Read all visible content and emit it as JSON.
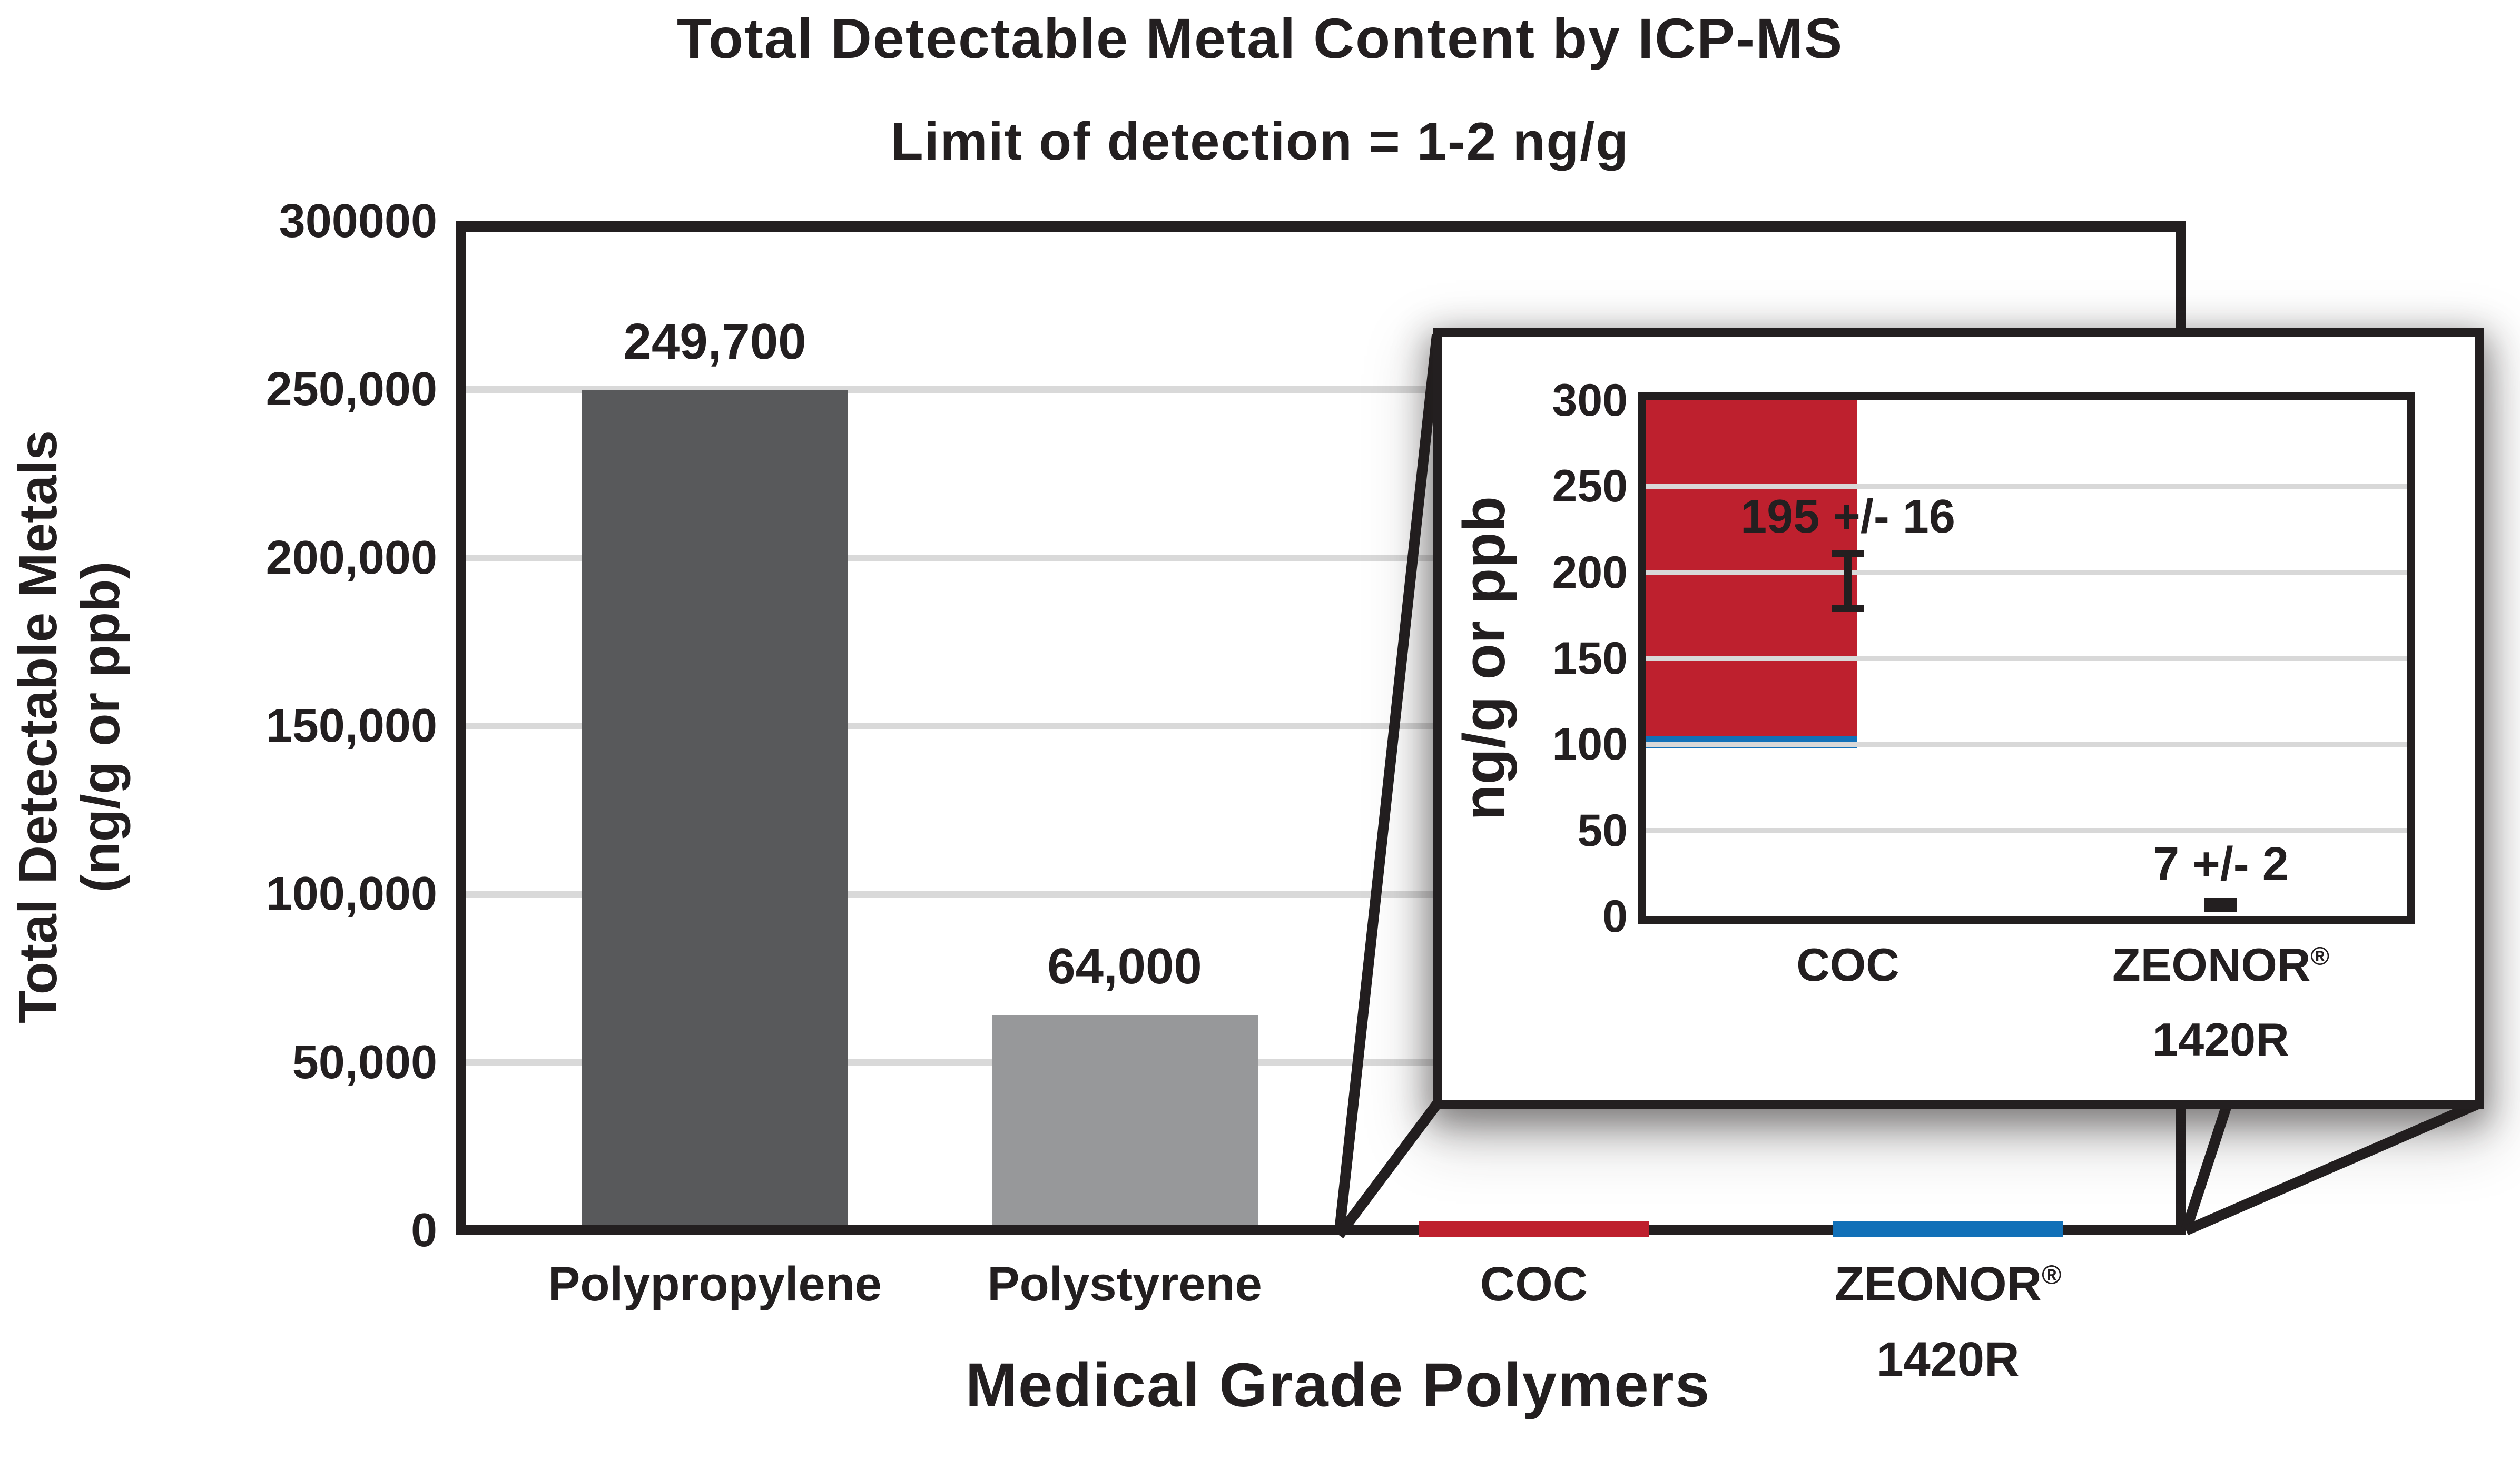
{
  "ui": {
    "title": "Total Detectable Metal Content by ICP-MS",
    "subtitle": "Limit of detection = 1-2 ng/g",
    "main": {
      "y_title_line1": "Total Detectable Metals",
      "y_title_line2": "(ng/g or ppb)",
      "x_title": "Medical Grade Polymers"
    },
    "inset": {
      "y_title": "ng/g or ppb"
    }
  },
  "colors": {
    "ink": "#231F20",
    "grid_main": "#D9D9D9",
    "grid_inset": "#D8D8D8",
    "polypropylene": "#58595B",
    "polystyrene": "#97989A",
    "coc_red": "#BE202E",
    "zeonor_blue": "#1170B8"
  },
  "chart_data": [
    {
      "type": "bar",
      "role": "main",
      "title": "Total Detectable Metal Content by ICP-MS",
      "subtitle": "Limit of detection = 1-2 ng/g",
      "categories": [
        "Polypropylene",
        "Polystyrene",
        "COC",
        "ZEONOR® 1420R"
      ],
      "x_tick_lines": [
        [
          "Polypropylene"
        ],
        [
          "Polystyrene"
        ],
        [
          "COC"
        ],
        [
          "ZEONOR®",
          "1420R"
        ]
      ],
      "values": [
        249700,
        64000,
        195,
        7
      ],
      "data_labels": [
        "249,700",
        "64,000",
        "",
        ""
      ],
      "bar_colors": [
        "#58595B",
        "#97989A",
        "#BE202E",
        "#1170B8"
      ],
      "xlabel": "Medical Grade Polymers",
      "ylabel": "Total Detectable Metals (ng/g or ppb)",
      "ylim": [
        0,
        300000
      ],
      "yticks": [
        0,
        50000,
        100000,
        150000,
        200000,
        250000,
        300000
      ],
      "ytick_labels": [
        "0",
        "50,000",
        "100,000",
        "150,000",
        "200,000",
        "250,000",
        "300000"
      ],
      "gridlines": [
        50000,
        100000,
        150000,
        200000,
        250000
      ],
      "grid": true,
      "legend": "none"
    },
    {
      "type": "bar",
      "role": "inset",
      "categories": [
        "COC",
        "ZEONOR® 1420R"
      ],
      "x_tick_lines": [
        [
          "COC"
        ],
        [
          "ZEONOR®",
          "1420R"
        ]
      ],
      "values": [
        195,
        7
      ],
      "errors": [
        16,
        2
      ],
      "data_labels": [
        "195 +/- 16",
        "7 +/- 2"
      ],
      "bar_colors": [
        "#BE202E",
        "#1170B8"
      ],
      "xlabel": "",
      "ylabel": "ng/g or ppb",
      "ylim": [
        0,
        300
      ],
      "yticks": [
        0,
        50,
        100,
        150,
        200,
        250,
        300
      ],
      "ytick_labels": [
        "0",
        "50",
        "100",
        "150",
        "200",
        "250",
        "300"
      ],
      "gridlines": [
        50,
        100,
        150,
        200,
        250
      ],
      "grid": true,
      "legend": "none"
    }
  ]
}
